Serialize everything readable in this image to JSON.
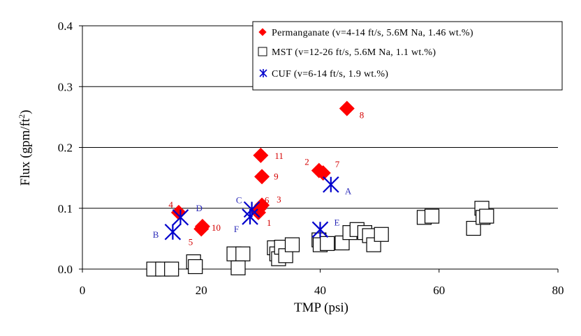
{
  "chart_data": {
    "type": "scatter",
    "xlabel": "TMP (psi)",
    "ylabel": "Flux (gpm/ft",
    "ylabel_sup": "2",
    "ylabel_end": ")",
    "xlim": [
      0,
      80
    ],
    "ylim": [
      0.0,
      0.4
    ],
    "x_ticks": [
      "0",
      "20",
      "40",
      "60",
      "80"
    ],
    "x_tick_values": [
      0,
      20,
      40,
      60,
      80
    ],
    "y_ticks": [
      "0.0",
      "0.1",
      "0.2",
      "0.3",
      "0.4"
    ],
    "y_tick_values": [
      0.0,
      0.1,
      0.2,
      0.3,
      0.4
    ],
    "grid": "horizontal",
    "legend_position": "top-right",
    "series": [
      {
        "name": "Permanganate (v=4-14 ft/s, 5.6M Na, 1.46 wt.%)",
        "marker": "diamond",
        "color": "#ff0000",
        "points": [
          {
            "x": 44.5,
            "y": 0.264,
            "label": "8"
          },
          {
            "x": 30.0,
            "y": 0.187,
            "label": "11"
          },
          {
            "x": 30.2,
            "y": 0.152,
            "label": "9"
          },
          {
            "x": 39.8,
            "y": 0.162,
            "label": "2"
          },
          {
            "x": 40.5,
            "y": 0.158,
            "label": "7"
          },
          {
            "x": 30.2,
            "y": 0.105,
            "label": "3"
          },
          {
            "x": 29.7,
            "y": 0.099,
            "label": "6"
          },
          {
            "x": 29.6,
            "y": 0.093,
            "label": "1"
          },
          {
            "x": 16.2,
            "y": 0.093,
            "label": "4"
          },
          {
            "x": 20.2,
            "y": 0.07,
            "label": "10"
          },
          {
            "x": 20.0,
            "y": 0.066,
            "label": "5"
          }
        ]
      },
      {
        "name": "MST (v=12-26 ft/s, 5.6M Na, 1.1 wt.%)",
        "marker": "square",
        "color": "#000000",
        "points": [
          {
            "x": 12.0,
            "y": 0.0
          },
          {
            "x": 13.5,
            "y": 0.0
          },
          {
            "x": 15.0,
            "y": 0.0
          },
          {
            "x": 18.7,
            "y": 0.012
          },
          {
            "x": 19.0,
            "y": 0.004
          },
          {
            "x": 25.5,
            "y": 0.025
          },
          {
            "x": 27.0,
            "y": 0.025
          },
          {
            "x": 26.2,
            "y": 0.002
          },
          {
            "x": 32.3,
            "y": 0.035
          },
          {
            "x": 32.7,
            "y": 0.025
          },
          {
            "x": 33.0,
            "y": 0.017
          },
          {
            "x": 33.5,
            "y": 0.036
          },
          {
            "x": 34.2,
            "y": 0.022
          },
          {
            "x": 35.3,
            "y": 0.04
          },
          {
            "x": 39.8,
            "y": 0.048
          },
          {
            "x": 40.0,
            "y": 0.04
          },
          {
            "x": 41.2,
            "y": 0.042
          },
          {
            "x": 43.7,
            "y": 0.043
          },
          {
            "x": 45.0,
            "y": 0.06
          },
          {
            "x": 46.2,
            "y": 0.065
          },
          {
            "x": 47.5,
            "y": 0.06
          },
          {
            "x": 48.3,
            "y": 0.055
          },
          {
            "x": 49.0,
            "y": 0.04
          },
          {
            "x": 50.3,
            "y": 0.057
          },
          {
            "x": 57.5,
            "y": 0.085
          },
          {
            "x": 58.8,
            "y": 0.087
          },
          {
            "x": 65.8,
            "y": 0.067
          },
          {
            "x": 67.2,
            "y": 0.1
          },
          {
            "x": 67.4,
            "y": 0.085
          },
          {
            "x": 68.0,
            "y": 0.087
          }
        ]
      },
      {
        "name": "CUF (v=6-14 ft/s, 1.9 wt.%)",
        "marker": "star",
        "color": "#0000cc",
        "points": [
          {
            "x": 41.8,
            "y": 0.139,
            "label": "A"
          },
          {
            "x": 15.2,
            "y": 0.061,
            "label": "B"
          },
          {
            "x": 28.5,
            "y": 0.098,
            "label": "C"
          },
          {
            "x": 16.5,
            "y": 0.085,
            "label": "D"
          },
          {
            "x": 40.0,
            "y": 0.065,
            "label": "E"
          },
          {
            "x": 28.2,
            "y": 0.086,
            "label": "F"
          }
        ]
      }
    ]
  }
}
